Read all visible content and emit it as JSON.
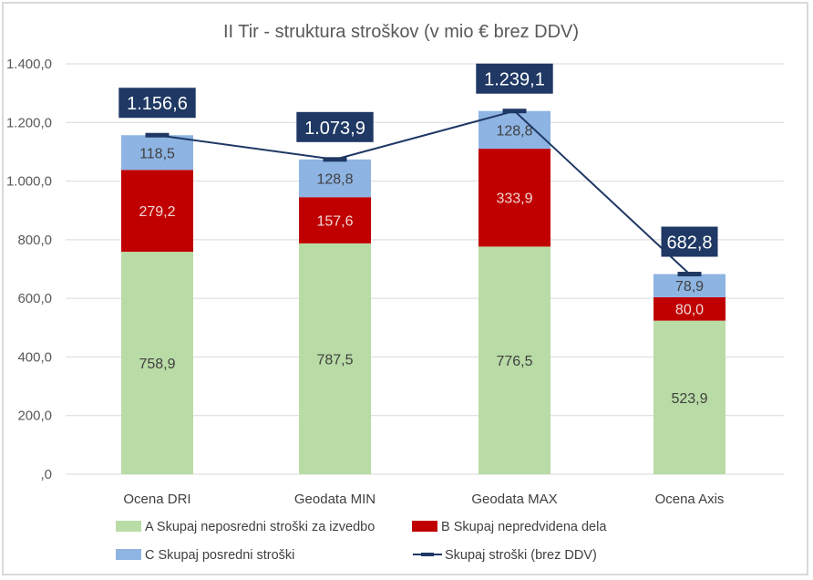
{
  "chart_data": {
    "type": "bar",
    "stacked": true,
    "title": "II Tir - struktura stroškov (v mio € brez DDV)",
    "xlabel": "",
    "ylabel": "",
    "ylim": [
      0,
      1400
    ],
    "yticks": [
      0,
      200,
      400,
      600,
      800,
      1000,
      1200,
      1400
    ],
    "ytick_labels": [
      ",0",
      "200,0",
      "400,0",
      "600,0",
      "800,0",
      "1.000,0",
      "1.200,0",
      "1.400,0"
    ],
    "grid": true,
    "legend_position": "bottom",
    "categories": [
      "Ocena DRI",
      "Geodata MIN",
      "Geodata MAX",
      "Ocena Axis"
    ],
    "series": [
      {
        "name": "A  Skupaj neposredni stroški za izvedbo",
        "type": "bar",
        "color": "#b9dba6",
        "label_color": "#404040",
        "values": [
          758.9,
          787.5,
          776.5,
          523.9
        ],
        "labels": [
          "758,9",
          "787,5",
          "776,5",
          "523,9"
        ]
      },
      {
        "name": "B  Skupaj nepredvidena dela",
        "type": "bar",
        "color": "#c00000",
        "label_color": "#f2d7d7",
        "values": [
          279.2,
          157.6,
          333.9,
          80.0
        ],
        "labels": [
          "279,2",
          "157,6",
          "333,9",
          "80,0"
        ]
      },
      {
        "name": "C Skupaj posredni stroški",
        "type": "bar",
        "color": "#8eb4e3",
        "label_color": "#404040",
        "values": [
          118.5,
          128.8,
          128.8,
          78.9
        ],
        "labels": [
          "118,5",
          "128,8",
          "128,8",
          "78,9"
        ]
      },
      {
        "name": "Skupaj stroški (brez DDV)",
        "type": "line",
        "color": "#1f3864",
        "values": [
          1156.6,
          1073.9,
          1239.1,
          682.8
        ],
        "labels": [
          "1.156,6",
          "1.073,9",
          "1.239,1",
          "682,8"
        ]
      }
    ]
  }
}
